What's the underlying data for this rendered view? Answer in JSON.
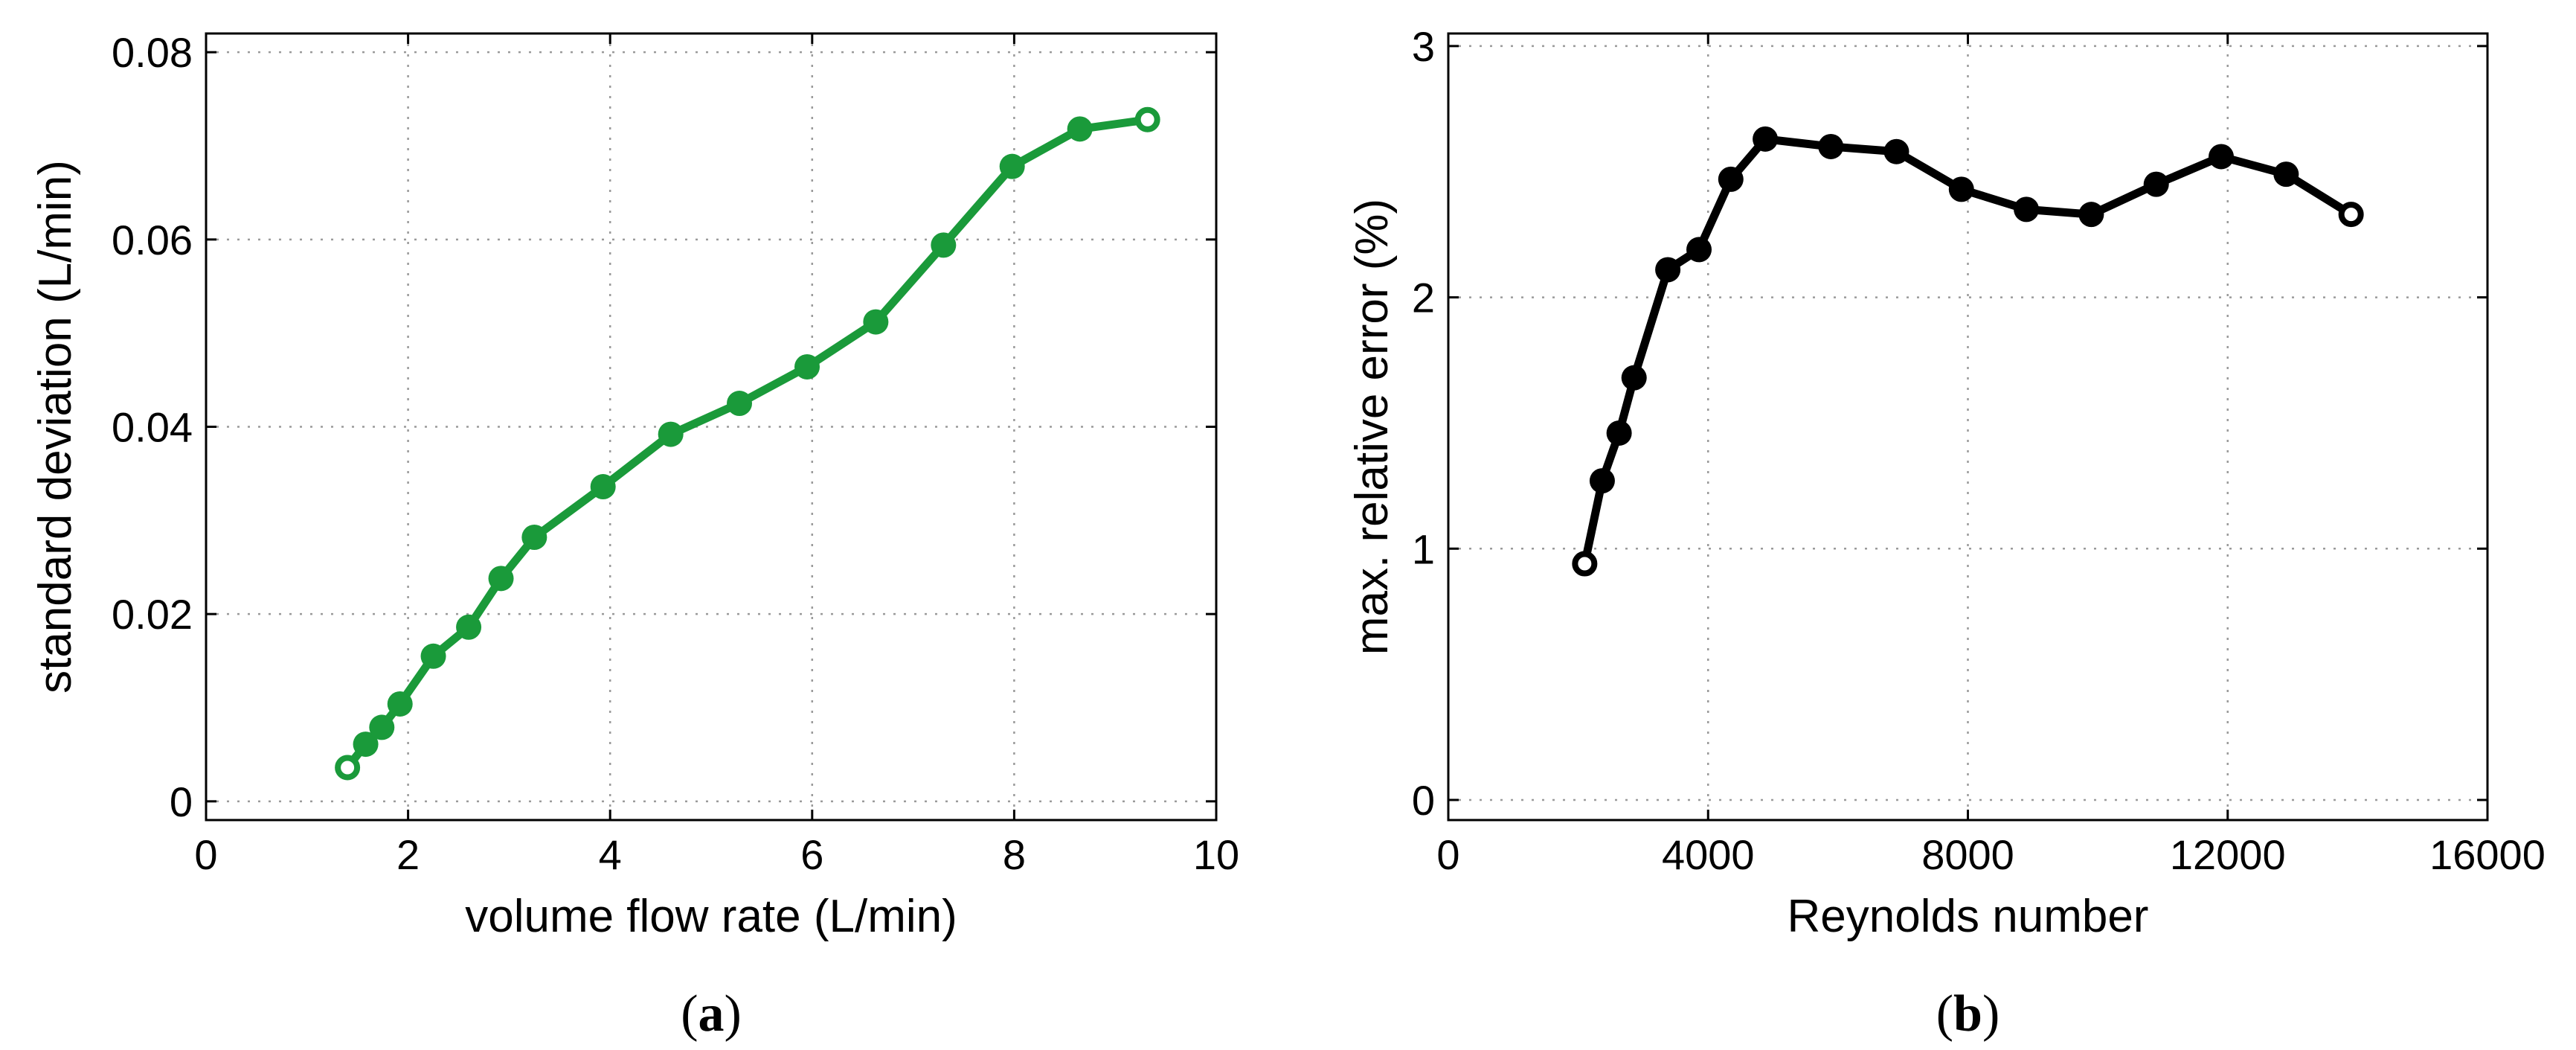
{
  "chart_data": [
    {
      "type": "line",
      "panel_label": "a",
      "xlabel": "volume flow rate (L/min)",
      "ylabel": "standard deviation (L/min)",
      "xlim": [
        0,
        10
      ],
      "ylim": [
        -0.002,
        0.082
      ],
      "xticks": [
        0,
        2,
        4,
        6,
        8,
        10
      ],
      "xtick_labels": [
        "0",
        "2",
        "4",
        "6",
        "8",
        "10"
      ],
      "yticks": [
        0,
        0.02,
        0.04,
        0.06,
        0.08
      ],
      "ytick_labels": [
        "0",
        "0.02",
        "0.04",
        "0.06",
        "0.08"
      ],
      "grid": true,
      "series": [
        {
          "name": "standard deviation",
          "color": "#1a9a3a",
          "x": [
            1.4,
            1.58,
            1.74,
            1.92,
            2.25,
            2.6,
            2.92,
            3.25,
            3.93,
            4.6,
            5.28,
            5.95,
            6.63,
            7.3,
            7.98,
            8.65,
            9.32
          ],
          "y": [
            0.0036,
            0.0061,
            0.0079,
            0.0104,
            0.0155,
            0.0186,
            0.0238,
            0.0282,
            0.0336,
            0.0392,
            0.0425,
            0.0464,
            0.0512,
            0.0594,
            0.0678,
            0.0718,
            0.0728
          ],
          "open_markers": [
            0,
            16
          ]
        }
      ]
    },
    {
      "type": "line",
      "panel_label": "b",
      "xlabel": "Reynolds number",
      "ylabel": "max. relative error (%)",
      "xlim": [
        0,
        16000
      ],
      "ylim": [
        -0.08,
        3.05
      ],
      "xticks": [
        0,
        4000,
        8000,
        12000,
        16000
      ],
      "xtick_labels": [
        "0",
        "4000",
        "8000",
        "12000",
        "16000"
      ],
      "yticks": [
        0,
        1,
        2,
        3
      ],
      "ytick_labels": [
        "0",
        "1",
        "2",
        "3"
      ],
      "grid": true,
      "series": [
        {
          "name": "max. relative error",
          "color": "#000000",
          "x": [
            2100,
            2370,
            2630,
            2860,
            3380,
            3860,
            4350,
            4880,
            5890,
            6900,
            7900,
            8900,
            9900,
            10900,
            11900,
            12900,
            13900
          ],
          "y": [
            0.94,
            1.27,
            1.46,
            1.68,
            2.11,
            2.19,
            2.47,
            2.63,
            2.6,
            2.58,
            2.43,
            2.35,
            2.33,
            2.45,
            2.56,
            2.49,
            2.33
          ],
          "open_markers": [
            0,
            16
          ]
        }
      ]
    }
  ]
}
